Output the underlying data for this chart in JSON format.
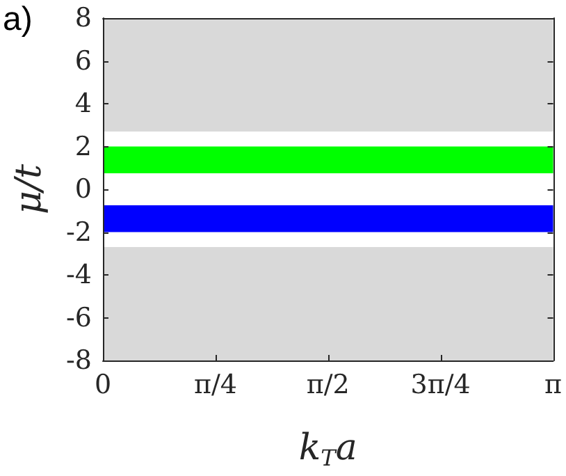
{
  "chart_data": {
    "type": "line",
    "xlabel": "k$_{T}$a",
    "ylabel": "μ/t",
    "annotations": [
      "a)"
    ],
    "xlim": [
      0,
      3.1416
    ],
    "xticks": [
      0,
      {
        "value": 0.7854,
        "label": "π/4"
      },
      {
        "value": 1.5708,
        "label": "π/2"
      },
      {
        "value": 2.3562,
        "label": "3π/4"
      },
      {
        "value": 3.1416,
        "label": "π"
      }
    ],
    "ylim": [
      -8,
      8
    ],
    "yticks": [
      -8,
      -6,
      -4,
      -2,
      0,
      2,
      4,
      6,
      8
    ],
    "bands": [
      {
        "axis": "y",
        "from": 2.7,
        "to": 8,
        "color": "#d9d9d9"
      },
      {
        "axis": "y",
        "from": 0.75,
        "to": 2,
        "color": "#00ff00"
      },
      {
        "axis": "y",
        "from": -2,
        "to": -0.75,
        "color": "#0000ff"
      },
      {
        "axis": "y",
        "from": -8,
        "to": -2.7,
        "color": "#d9d9d9"
      }
    ]
  }
}
